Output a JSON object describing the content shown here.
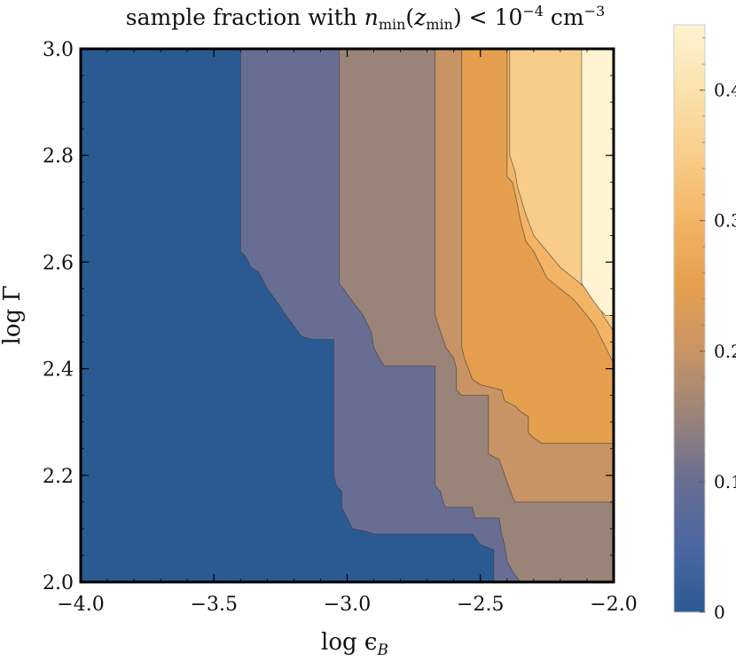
{
  "chart_data": {
    "type": "contour",
    "title": {
      "prefix": "sample fraction with ",
      "n": "n",
      "n_sub": "min",
      "paren_open": "(",
      "z": "z",
      "z_sub": "min",
      "paren_close": ")",
      "lt": " < 10",
      "exp": "−4",
      "unit": " cm",
      "unit_exp": "−3"
    },
    "xlabel": {
      "main": "log ϵ",
      "sub": "B"
    },
    "ylabel": "log Γ",
    "xlim": [
      -4.0,
      -2.0
    ],
    "ylim": [
      2.0,
      3.0
    ],
    "x_ticks": [
      -4.0,
      -3.5,
      -3.0,
      -2.5,
      -2.0
    ],
    "x_tick_labels": [
      "−4.0",
      "−3.5",
      "−3.0",
      "−2.5",
      "−2.0"
    ],
    "y_ticks": [
      2.0,
      2.2,
      2.4,
      2.6,
      2.8,
      3.0
    ],
    "y_tick_labels": [
      "2.0",
      "2.2",
      "2.4",
      "2.6",
      "2.8",
      "3.0"
    ],
    "colorbar": {
      "range": [
        0,
        0.45
      ],
      "ticks": [
        0,
        0.1,
        0.2,
        0.3,
        0.4
      ],
      "tick_labels": [
        "0",
        "0.1",
        "0.2",
        "0.3",
        "0.4"
      ],
      "stops": [
        {
          "v": 0.0,
          "color": "#2b5a92"
        },
        {
          "v": 0.05,
          "color": "#4b67a2"
        },
        {
          "v": 0.1,
          "color": "#686e93"
        },
        {
          "v": 0.15,
          "color": "#9a8379"
        },
        {
          "v": 0.2,
          "color": "#c89465"
        },
        {
          "v": 0.25,
          "color": "#e59f4e"
        },
        {
          "v": 0.3,
          "color": "#f3b466"
        },
        {
          "v": 0.35,
          "color": "#f8cd89"
        },
        {
          "v": 0.4,
          "color": "#fbe1ad"
        },
        {
          "v": 0.45,
          "color": "#fff3d1"
        }
      ]
    },
    "levels": [
      {
        "name": "level-0-0.05",
        "color": "#2b5a92",
        "boundary": [
          [
            -4.0,
            2.0
          ],
          [
            -4.0,
            3.0
          ],
          [
            -2.0,
            3.0
          ],
          [
            -2.0,
            2.0
          ]
        ]
      },
      {
        "name": "level-0.05-0.1",
        "color": "#686e93",
        "boundary": [
          [
            -3.4,
            3.0
          ],
          [
            -3.4,
            2.62
          ],
          [
            -3.38,
            2.61
          ],
          [
            -3.36,
            2.59
          ],
          [
            -3.33,
            2.58
          ],
          [
            -3.3,
            2.55
          ],
          [
            -3.27,
            2.53
          ],
          [
            -3.23,
            2.5
          ],
          [
            -3.2,
            2.48
          ],
          [
            -3.17,
            2.46
          ],
          [
            -3.13,
            2.455
          ],
          [
            -3.05,
            2.455
          ],
          [
            -3.05,
            2.2
          ],
          [
            -3.04,
            2.18
          ],
          [
            -3.02,
            2.17
          ],
          [
            -3.02,
            2.14
          ],
          [
            -3.0,
            2.12
          ],
          [
            -2.98,
            2.1
          ],
          [
            -2.93,
            2.095
          ],
          [
            -2.9,
            2.09
          ],
          [
            -2.67,
            2.09
          ],
          [
            -2.53,
            2.09
          ],
          [
            -2.5,
            2.07
          ],
          [
            -2.45,
            2.06
          ],
          [
            -2.45,
            2.0
          ],
          [
            -2.0,
            2.0
          ],
          [
            -2.0,
            3.0
          ]
        ]
      },
      {
        "name": "level-0.1-0.15",
        "color": "#9a8379",
        "boundary": [
          [
            -3.03,
            3.0
          ],
          [
            -3.03,
            2.56
          ],
          [
            -3.0,
            2.54
          ],
          [
            -2.97,
            2.52
          ],
          [
            -2.94,
            2.5
          ],
          [
            -2.91,
            2.47
          ],
          [
            -2.9,
            2.44
          ],
          [
            -2.88,
            2.42
          ],
          [
            -2.86,
            2.405
          ],
          [
            -2.67,
            2.405
          ],
          [
            -2.67,
            2.18
          ],
          [
            -2.65,
            2.17
          ],
          [
            -2.64,
            2.15
          ],
          [
            -2.63,
            2.14
          ],
          [
            -2.53,
            2.14
          ],
          [
            -2.52,
            2.12
          ],
          [
            -2.43,
            2.12
          ],
          [
            -2.42,
            2.09
          ],
          [
            -2.41,
            2.07
          ],
          [
            -2.4,
            2.04
          ],
          [
            -2.38,
            2.02
          ],
          [
            -2.35,
            2.0
          ],
          [
            -2.0,
            2.0
          ],
          [
            -2.0,
            3.0
          ]
        ]
      },
      {
        "name": "level-0.15-0.2",
        "color": "#c89465",
        "boundary": [
          [
            -2.67,
            3.0
          ],
          [
            -2.67,
            2.5
          ],
          [
            -2.65,
            2.47
          ],
          [
            -2.63,
            2.44
          ],
          [
            -2.6,
            2.42
          ],
          [
            -2.59,
            2.4
          ],
          [
            -2.59,
            2.36
          ],
          [
            -2.57,
            2.35
          ],
          [
            -2.47,
            2.35
          ],
          [
            -2.47,
            2.24
          ],
          [
            -2.43,
            2.23
          ],
          [
            -2.38,
            2.16
          ],
          [
            -2.37,
            2.15
          ],
          [
            -2.0,
            2.15
          ],
          [
            -2.0,
            3.0
          ]
        ]
      },
      {
        "name": "level-0.2-0.25",
        "color": "#e59f4e",
        "boundary": [
          [
            -2.57,
            3.0
          ],
          [
            -2.57,
            2.46
          ],
          [
            -2.57,
            2.44
          ],
          [
            -2.56,
            2.42
          ],
          [
            -2.53,
            2.38
          ],
          [
            -2.5,
            2.37
          ],
          [
            -2.42,
            2.36
          ],
          [
            -2.41,
            2.34
          ],
          [
            -2.37,
            2.33
          ],
          [
            -2.35,
            2.32
          ],
          [
            -2.32,
            2.31
          ],
          [
            -2.32,
            2.28
          ],
          [
            -2.3,
            2.27
          ],
          [
            -2.27,
            2.26
          ],
          [
            -2.0,
            2.26
          ],
          [
            -2.0,
            3.0
          ]
        ]
      },
      {
        "name": "level-0.25-0.3",
        "color": "#f3b466",
        "boundary": [
          [
            -2.4,
            3.0
          ],
          [
            -2.4,
            2.76
          ],
          [
            -2.38,
            2.75
          ],
          [
            -2.37,
            2.73
          ],
          [
            -2.35,
            2.68
          ],
          [
            -2.33,
            2.64
          ],
          [
            -2.3,
            2.62
          ],
          [
            -2.28,
            2.6
          ],
          [
            -2.25,
            2.57
          ],
          [
            -2.2,
            2.55
          ],
          [
            -2.15,
            2.53
          ],
          [
            -2.1,
            2.5
          ],
          [
            -2.07,
            2.48
          ],
          [
            -2.05,
            2.46
          ],
          [
            -2.03,
            2.44
          ],
          [
            -2.0,
            2.41
          ],
          [
            -2.0,
            3.0
          ]
        ]
      },
      {
        "name": "level-0.3-0.35",
        "color": "#f8cd89",
        "boundary": [
          [
            -2.39,
            3.0
          ],
          [
            -2.39,
            2.8
          ],
          [
            -2.37,
            2.77
          ],
          [
            -2.36,
            2.74
          ],
          [
            -2.33,
            2.69
          ],
          [
            -2.3,
            2.65
          ],
          [
            -2.25,
            2.62
          ],
          [
            -2.2,
            2.59
          ],
          [
            -2.15,
            2.57
          ],
          [
            -2.1,
            2.55
          ],
          [
            -2.07,
            2.54
          ],
          [
            -2.04,
            2.5
          ],
          [
            -2.0,
            2.47
          ],
          [
            -2.0,
            3.0
          ]
        ]
      },
      {
        "name": "level-0.35-0.4",
        "color": "#fff3d1",
        "boundary": [
          [
            -2.12,
            3.0
          ],
          [
            -2.12,
            2.56
          ],
          [
            -2.08,
            2.53
          ],
          [
            -2.05,
            2.51
          ],
          [
            -2.03,
            2.5
          ],
          [
            -2.0,
            2.5
          ],
          [
            -2.0,
            3.0
          ]
        ]
      }
    ]
  }
}
